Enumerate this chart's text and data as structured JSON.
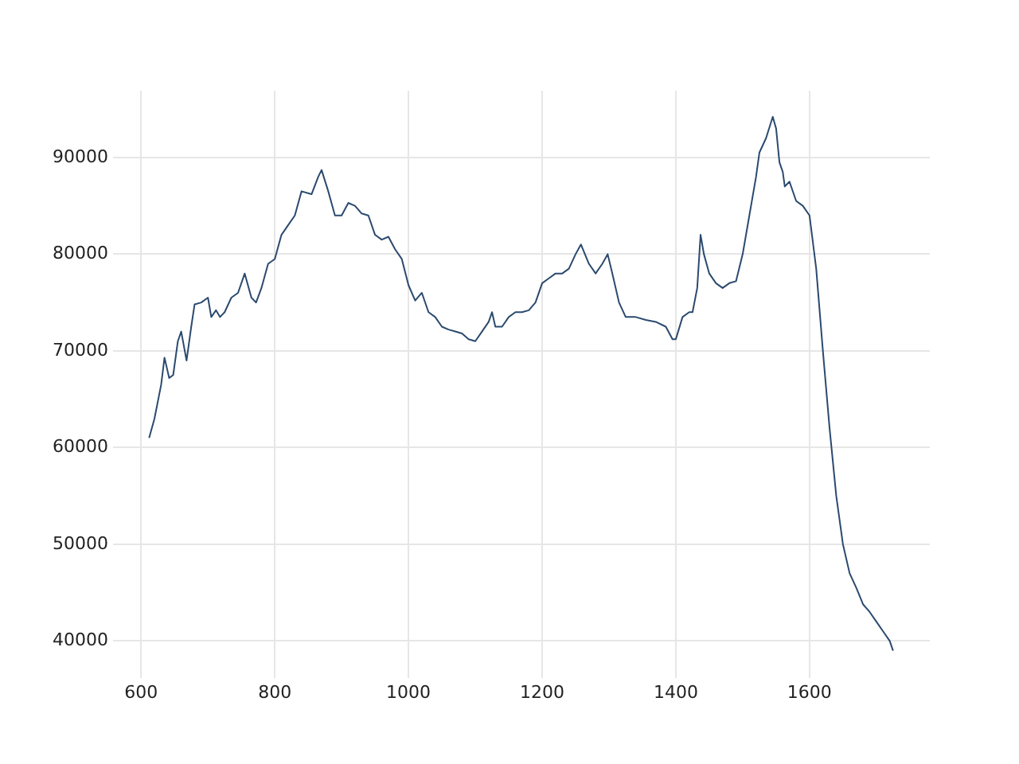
{
  "chart_data": {
    "type": "line",
    "xlim": [
      558,
      1780
    ],
    "ylim": [
      36200,
      96900
    ],
    "xticks": [
      600,
      800,
      1000,
      1200,
      1400,
      1600
    ],
    "yticks": [
      40000,
      50000,
      60000,
      70000,
      80000,
      90000
    ],
    "grid": true,
    "legend": false,
    "marker": "none",
    "line_style": "solid",
    "series": [
      {
        "color": "#2b4a6f",
        "x": [
          612,
          620,
          630,
          635,
          642,
          648,
          655,
          660,
          668,
          675,
          680,
          690,
          700,
          705,
          712,
          718,
          725,
          735,
          745,
          755,
          765,
          772,
          780,
          790,
          800,
          810,
          820,
          830,
          840,
          855,
          865,
          870,
          880,
          890,
          900,
          910,
          920,
          930,
          940,
          950,
          960,
          970,
          980,
          990,
          1000,
          1010,
          1020,
          1030,
          1040,
          1050,
          1060,
          1070,
          1080,
          1090,
          1100,
          1110,
          1120,
          1125,
          1130,
          1140,
          1150,
          1160,
          1170,
          1180,
          1190,
          1200,
          1210,
          1220,
          1230,
          1240,
          1250,
          1258,
          1270,
          1280,
          1290,
          1298,
          1305,
          1315,
          1325,
          1340,
          1355,
          1370,
          1385,
          1395,
          1400,
          1410,
          1420,
          1425,
          1432,
          1437,
          1442,
          1450,
          1460,
          1470,
          1480,
          1490,
          1500,
          1510,
          1520,
          1525,
          1535,
          1545,
          1550,
          1555,
          1560,
          1563,
          1570,
          1580,
          1590,
          1600,
          1610,
          1620,
          1630,
          1640,
          1650,
          1660,
          1670,
          1680,
          1690,
          1700,
          1710,
          1720,
          1725
        ],
        "values": [
          61000,
          63000,
          66500,
          69300,
          67200,
          67500,
          71000,
          72000,
          69000,
          72500,
          74800,
          75000,
          75500,
          73500,
          74200,
          73500,
          74000,
          75500,
          76000,
          78000,
          75500,
          75000,
          76500,
          79000,
          79500,
          82000,
          83000,
          84000,
          86500,
          86200,
          88000,
          88700,
          86500,
          84000,
          84000,
          85300,
          85000,
          84200,
          84000,
          82000,
          81500,
          81800,
          80500,
          79500,
          76800,
          75200,
          76000,
          74000,
          73500,
          72500,
          72200,
          72000,
          71800,
          71200,
          71000,
          72000,
          73000,
          74000,
          72500,
          72500,
          73500,
          74000,
          74000,
          74200,
          75000,
          77000,
          77500,
          78000,
          78000,
          78500,
          80000,
          81000,
          79000,
          78000,
          79000,
          80000,
          78000,
          75000,
          73500,
          73500,
          73200,
          73000,
          72500,
          71200,
          71200,
          73500,
          74000,
          74000,
          76500,
          82000,
          80000,
          78000,
          77000,
          76500,
          77000,
          77200,
          80000,
          84000,
          88000,
          90500,
          92000,
          94200,
          93000,
          89500,
          88500,
          87000,
          87500,
          85500,
          85000,
          84000,
          78500,
          70000,
          62000,
          55000,
          50000,
          47000,
          45500,
          43800,
          43000,
          42000,
          41000,
          40000,
          39000
        ]
      }
    ]
  }
}
